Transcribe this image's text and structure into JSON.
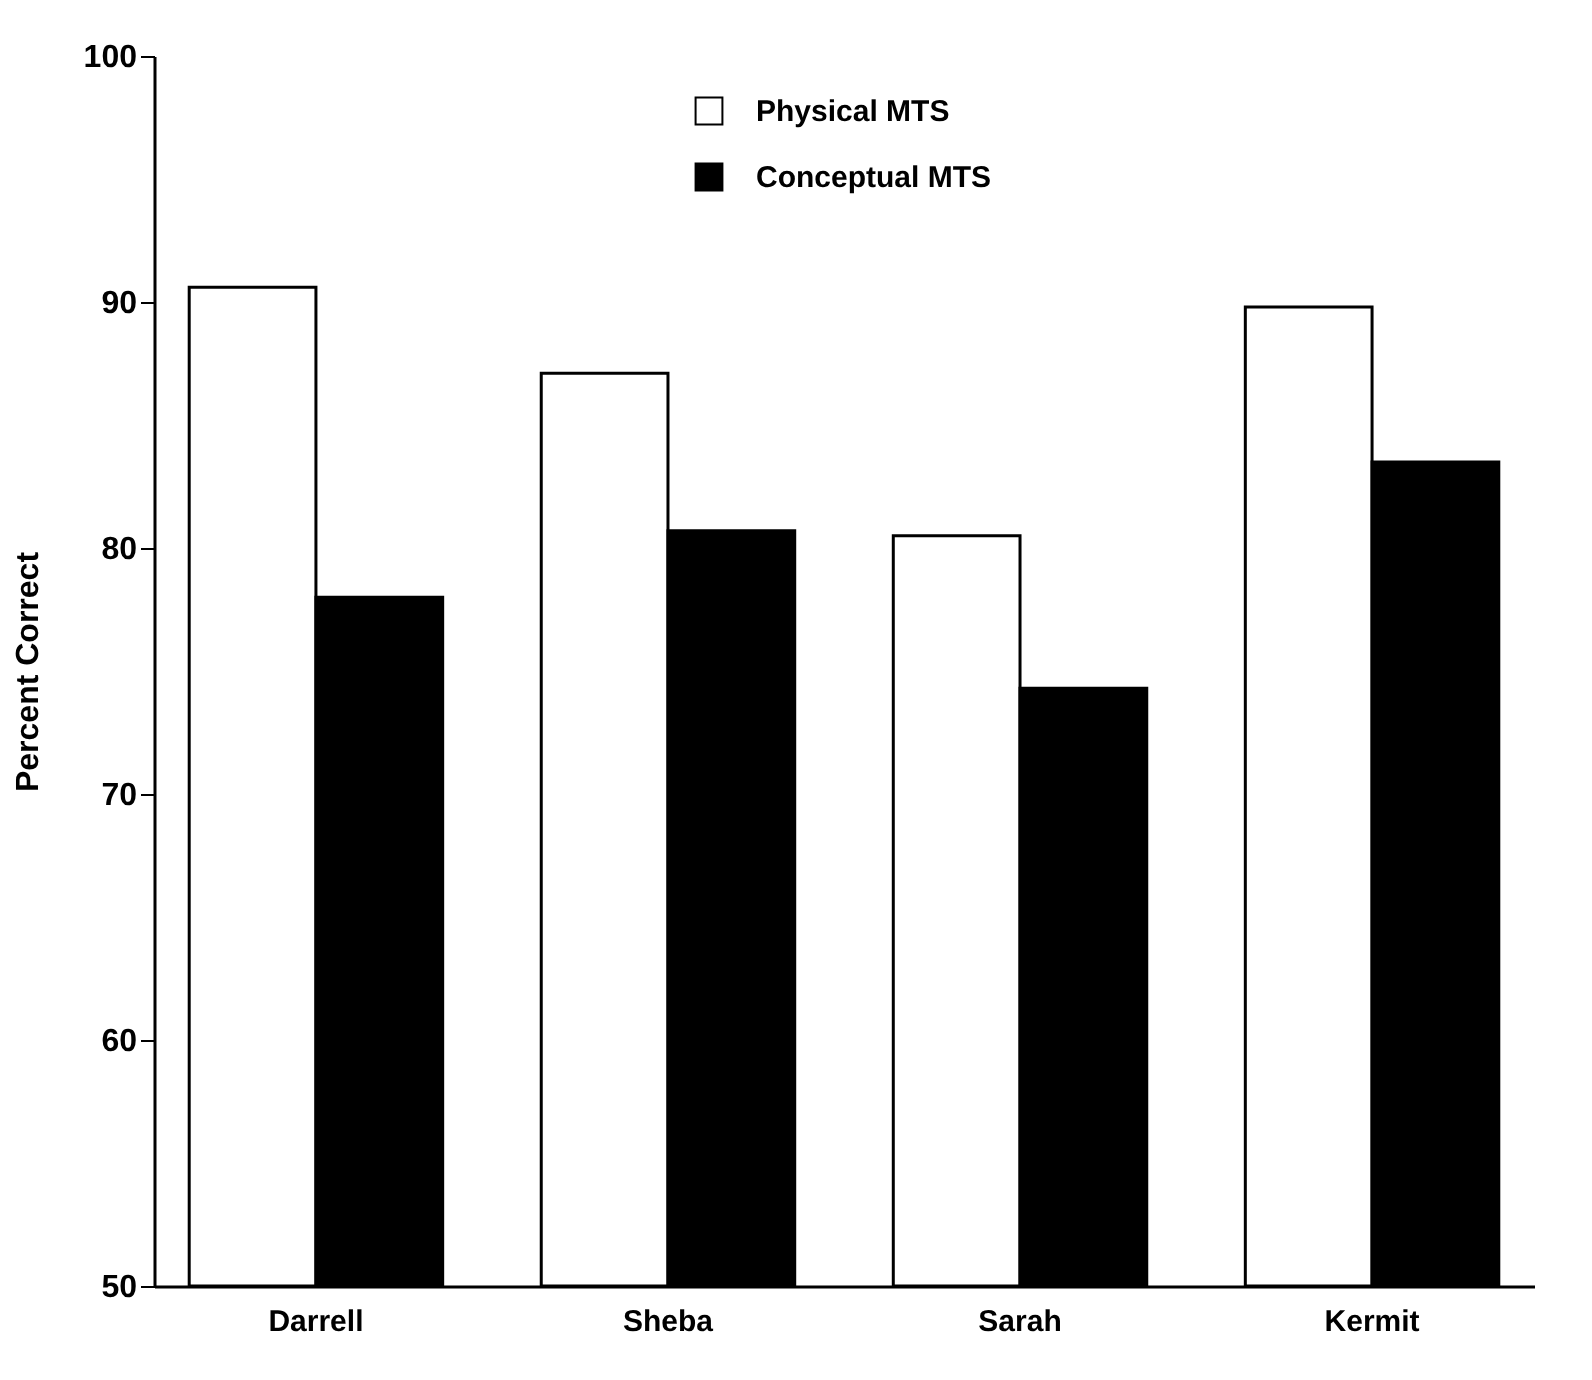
{
  "chart_data": {
    "type": "bar",
    "ylabel": "Percent Correct",
    "categories": [
      "Darrell",
      "Sheba",
      "Sarah",
      "Kermit"
    ],
    "series": [
      {
        "name": "Physical  MTS",
        "color": "#ffffff",
        "values": [
          90.6,
          87.1,
          80.5,
          89.8
        ]
      },
      {
        "name": "Conceptual  MTS",
        "color": "#000000",
        "values": [
          78.0,
          80.7,
          74.3,
          83.5
        ]
      }
    ],
    "ylim": [
      50,
      100
    ],
    "yticks": [
      50,
      60,
      70,
      80,
      90,
      100
    ],
    "grid": false,
    "legend": "top"
  }
}
